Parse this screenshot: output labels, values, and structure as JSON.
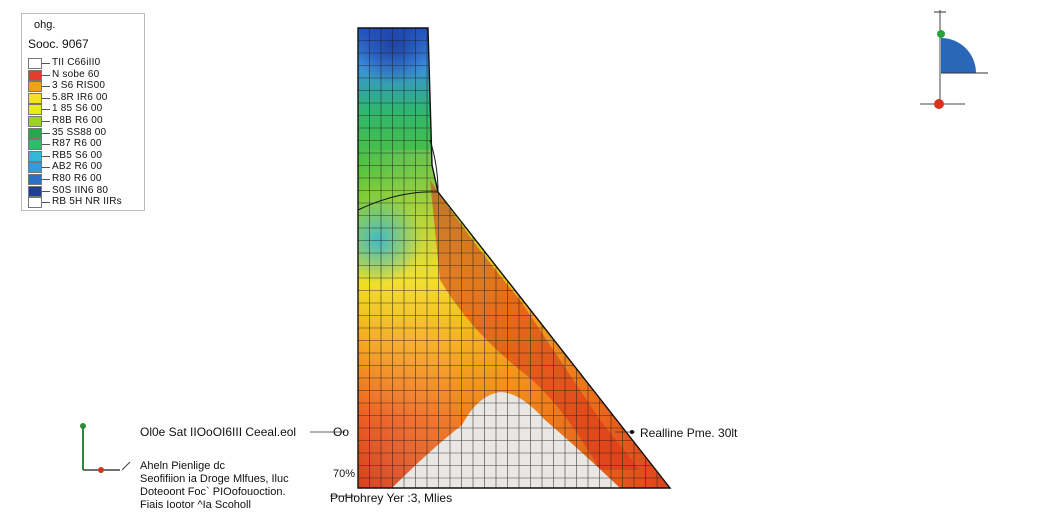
{
  "legend": {
    "title": "ohg.",
    "subtitle": "Sooc. 9067",
    "entries": [
      {
        "label": "TII C66iII0",
        "color": "#ffffff"
      },
      {
        "label": "N sobe 60",
        "color": "#e53a2e"
      },
      {
        "label": "3 S6 RIS00",
        "color": "#f2a21a"
      },
      {
        "label": "5.8R IR6 00",
        "color": "#f4e21b"
      },
      {
        "label": "1 85 S6 00",
        "color": "#e6ec1e"
      },
      {
        "label": "R8B R6 00",
        "color": "#9ad41d"
      },
      {
        "label": "35 SS88 00",
        "color": "#2aa74a"
      },
      {
        "label": "R87 R6 00",
        "color": "#36b86b"
      },
      {
        "label": "RB5 S6 00",
        "color": "#34b7d6"
      },
      {
        "label": "AB2 R6 00",
        "color": "#2f9de0"
      },
      {
        "label": "R80 R6 00",
        "color": "#2a70c8"
      },
      {
        "label": "S0S IIN6 80",
        "color": "#1f3da0"
      },
      {
        "label": "RB 5H NR IIRs",
        "color": "#ffffff"
      }
    ]
  },
  "annotations": {
    "left_label": "Ol0e Sat IIOoOI6III Ceeal.eol",
    "top_value": "Oo",
    "right_label": "Realline Pme. 30lt",
    "bottom_value": "70%",
    "bottom_label": "PoHohrey Yer :3,  Mlies"
  },
  "notes": {
    "line1": "Aheln Pienlige dc",
    "line2": "Seofifiion ia Droge Mlfues, Iluc",
    "line3": "Doteoont Foc` PIOofouoction.",
    "line4": "Fiais Iootor ^Ia Scoholl"
  },
  "colors": {
    "blue": "#1f3da0",
    "green": "#3fbf3f",
    "yellow": "#e8e51e",
    "orange": "#f08a1a",
    "red": "#d8321c"
  }
}
